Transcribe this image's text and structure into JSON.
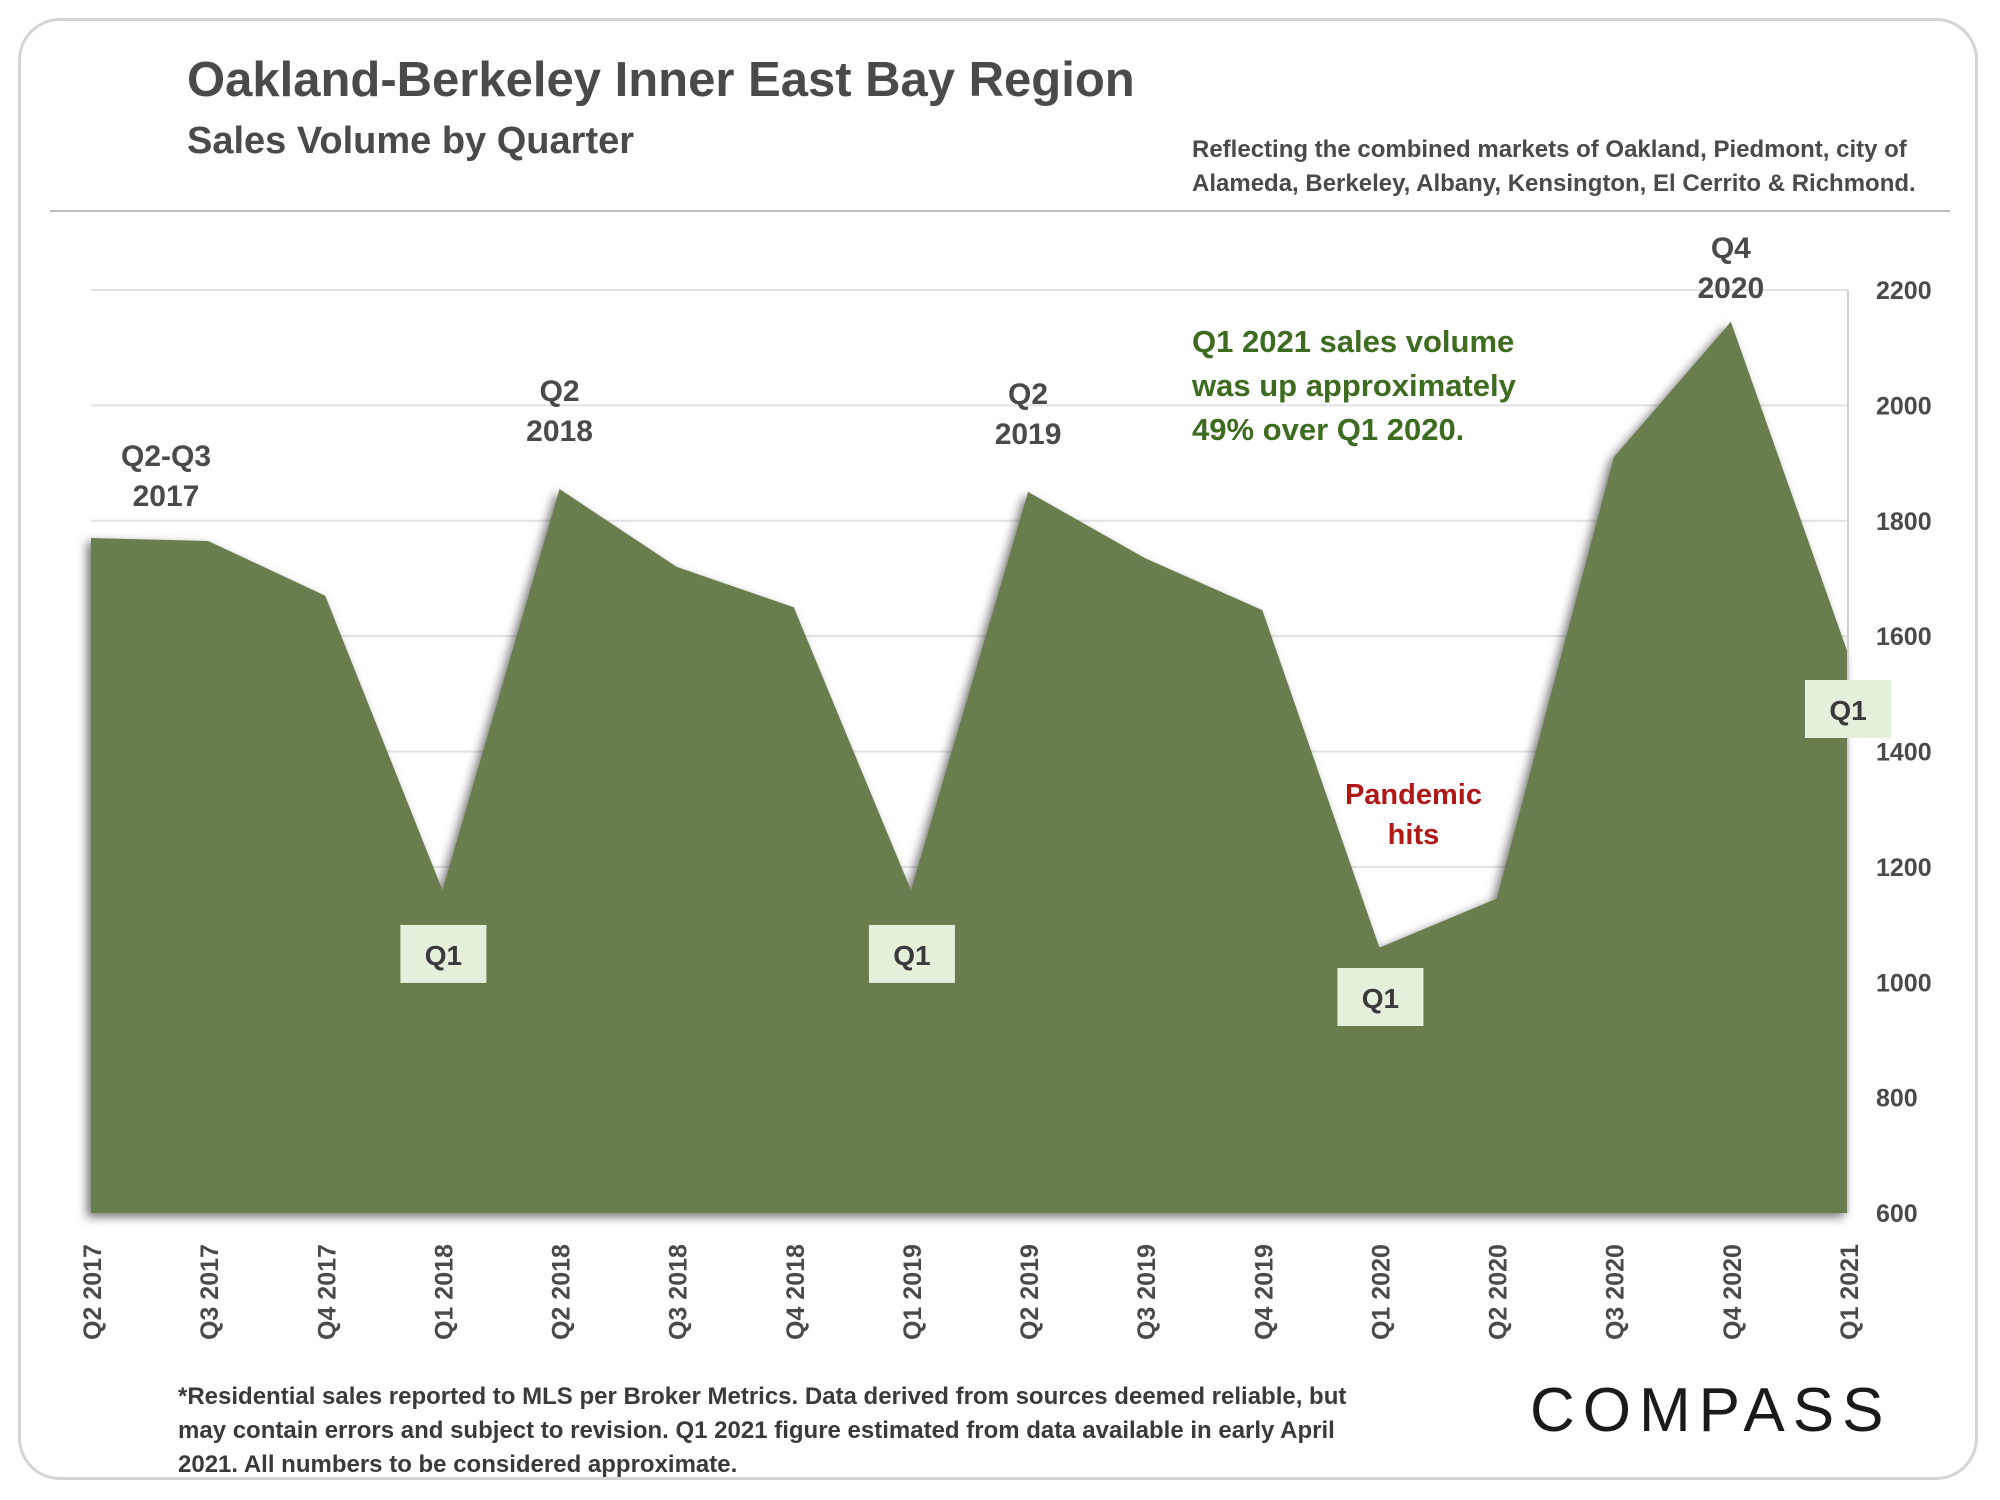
{
  "header": {
    "title": "Oakland-Berkeley Inner East Bay Region",
    "subtitle": "Sales Volume by Quarter",
    "description": "Reflecting the combined markets of Oakland, Piedmont, city of Alameda, Berkeley, Albany, Kensington, El Cerrito & Richmond."
  },
  "footer": {
    "footnote": "*Residential sales reported to MLS per Broker Metrics. Data derived from sources deemed reliable, but may contain errors and subject to revision. Q1 2021 figure estimated from data available in early April 2021. All numbers to  be considered approximate.",
    "logo_text": "COMPASS"
  },
  "colors": {
    "area_fill": "#6b7d50",
    "callout_green": "#3d6b1f",
    "pandemic_red": "#b01818",
    "q1_box": "#e4efdc"
  },
  "chart_data": {
    "type": "area",
    "categories": [
      "Q2 2017",
      "Q3 2017",
      "Q4 2017",
      "Q1 2018",
      "Q2 2018",
      "Q3 2018",
      "Q4 2018",
      "Q1 2019",
      "Q2 2019",
      "Q3 2019",
      "Q4 2019",
      "Q1 2020",
      "Q2 2020",
      "Q3 2020",
      "Q4 2020",
      "Q1 2021"
    ],
    "values": [
      1770,
      1765,
      1670,
      1160,
      1855,
      1720,
      1650,
      1160,
      1850,
      1735,
      1645,
      1060,
      1145,
      1910,
      2145,
      1570
    ],
    "ylim": [
      600,
      2200
    ],
    "yticks": [
      600,
      800,
      1000,
      1200,
      1400,
      1600,
      1800,
      2000,
      2200
    ],
    "y_axis_side": "right",
    "grid": true,
    "annotations": [
      {
        "text": "Q2-Q3\n2017",
        "index": 0,
        "style": "peak"
      },
      {
        "text": "Q2\n2018",
        "index": 4,
        "style": "peak"
      },
      {
        "text": "Q2\n2019",
        "index": 8,
        "style": "peak"
      },
      {
        "text": "Q4\n2020",
        "index": 14,
        "style": "peak"
      },
      {
        "text": "Q1",
        "index": 3,
        "style": "box"
      },
      {
        "text": "Q1",
        "index": 7,
        "style": "box"
      },
      {
        "text": "Q1",
        "index": 11,
        "style": "box"
      },
      {
        "text": "Q1",
        "index": 15,
        "style": "box"
      },
      {
        "text": "Pandemic\nhits",
        "index": 11,
        "style": "red"
      },
      {
        "text": "Q1 2021 sales volume\nwas up approximately\n49% over Q1 2020.",
        "index": 12,
        "style": "callout"
      }
    ]
  }
}
